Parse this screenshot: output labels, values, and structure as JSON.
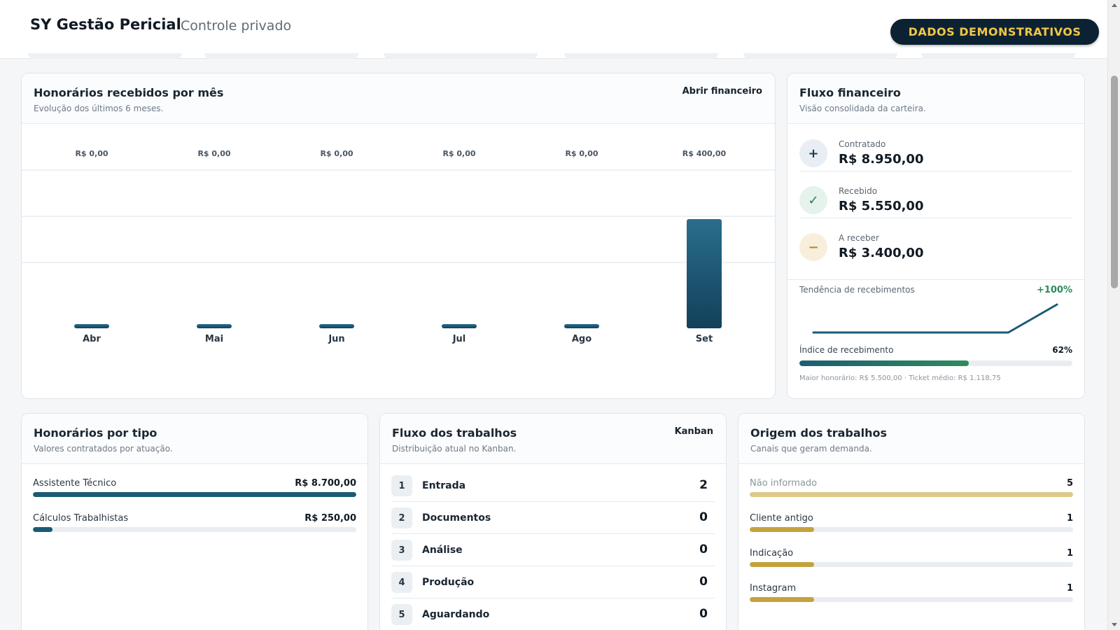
{
  "header": {
    "brand": "SY Gestão Pericial",
    "subtitle": "Controle privado",
    "badge": "DADOS DEMONSTRATIVOS"
  },
  "monthly": {
    "title": "Honorários recebidos por mês",
    "subtitle": "Evolução dos últimos 6 meses.",
    "link": "Abrir financeiro",
    "chart_data": {
      "type": "bar",
      "title": "Honorários recebidos por mês",
      "xlabel": "",
      "ylabel": "",
      "categories": [
        "Abr",
        "Mai",
        "Jun",
        "Jul",
        "Ago",
        "Set"
      ],
      "values": [
        0,
        0,
        0,
        0,
        0,
        400
      ],
      "value_labels": [
        "R$ 0,00",
        "R$ 0,00",
        "R$ 0,00",
        "R$ 0,00",
        "R$ 0,00",
        "R$ 400,00"
      ],
      "ylim": [
        0,
        400
      ],
      "grid": true,
      "colors": {
        "bar_top": "#2a6e8c",
        "bar_bottom": "#12405a",
        "grid": "#eef1f4"
      }
    }
  },
  "flow": {
    "title": "Fluxo financeiro",
    "subtitle": "Visão consolidada da carteira.",
    "items": [
      {
        "icon": "plus-icon",
        "symbol": "+",
        "label": "Contratado",
        "value": "R$ 8.950,00",
        "bg": "#e8eef3",
        "fg": "#1b3a52"
      },
      {
        "icon": "check-icon",
        "symbol": "✓",
        "label": "Recebido",
        "value": "R$ 5.550,00",
        "bg": "#e6f2ec",
        "fg": "#2b7a55"
      },
      {
        "icon": "minus-icon",
        "symbol": "−",
        "label": "A receber",
        "value": "R$ 3.400,00",
        "bg": "#f7efdb",
        "fg": "#b08a2c"
      }
    ],
    "trend_label": "Tendência de recebimentos",
    "trend_pct": "+100%",
    "trend_values": [
      0,
      0,
      0,
      0,
      0,
      400
    ],
    "index_label": "Índice de recebimento",
    "index_pct": "62%",
    "index_value": 0.62,
    "footer": "Maior honorário: R$ 5.500,00 · Ticket médio: R$ 1.118,75"
  },
  "types": {
    "title": "Honorários por tipo",
    "subtitle": "Valores contratados por atuação.",
    "items": [
      {
        "label": "Assistente Técnico",
        "value": "R$ 8.700,00",
        "fraction": 1.0
      },
      {
        "label": "Cálculos Trabalhistas",
        "value": "R$ 250,00",
        "fraction": 0.06
      }
    ],
    "color": "#1b5a76"
  },
  "kanban": {
    "title": "Fluxo dos trabalhos",
    "subtitle": "Distribuição atual no Kanban.",
    "link": "Kanban",
    "stages": [
      {
        "num": "1",
        "name": "Entrada",
        "count": "2"
      },
      {
        "num": "2",
        "name": "Documentos",
        "count": "0"
      },
      {
        "num": "3",
        "name": "Análise",
        "count": "0"
      },
      {
        "num": "4",
        "name": "Produção",
        "count": "0"
      },
      {
        "num": "5",
        "name": "Aguardando",
        "count": "0"
      }
    ]
  },
  "origin": {
    "title": "Origem dos trabalhos",
    "subtitle": "Canais que geram demanda.",
    "items": [
      {
        "label": "Não informado",
        "count": "5",
        "fraction": 1.0,
        "muted": true
      },
      {
        "label": "Cliente antigo",
        "count": "1",
        "fraction": 0.2,
        "muted": false
      },
      {
        "label": "Indicação",
        "count": "1",
        "fraction": 0.2,
        "muted": false
      },
      {
        "label": "Instagram",
        "count": "1",
        "fraction": 0.2,
        "muted": false
      }
    ],
    "color": "#c4a23c",
    "muted_color": "#ddc98a"
  }
}
